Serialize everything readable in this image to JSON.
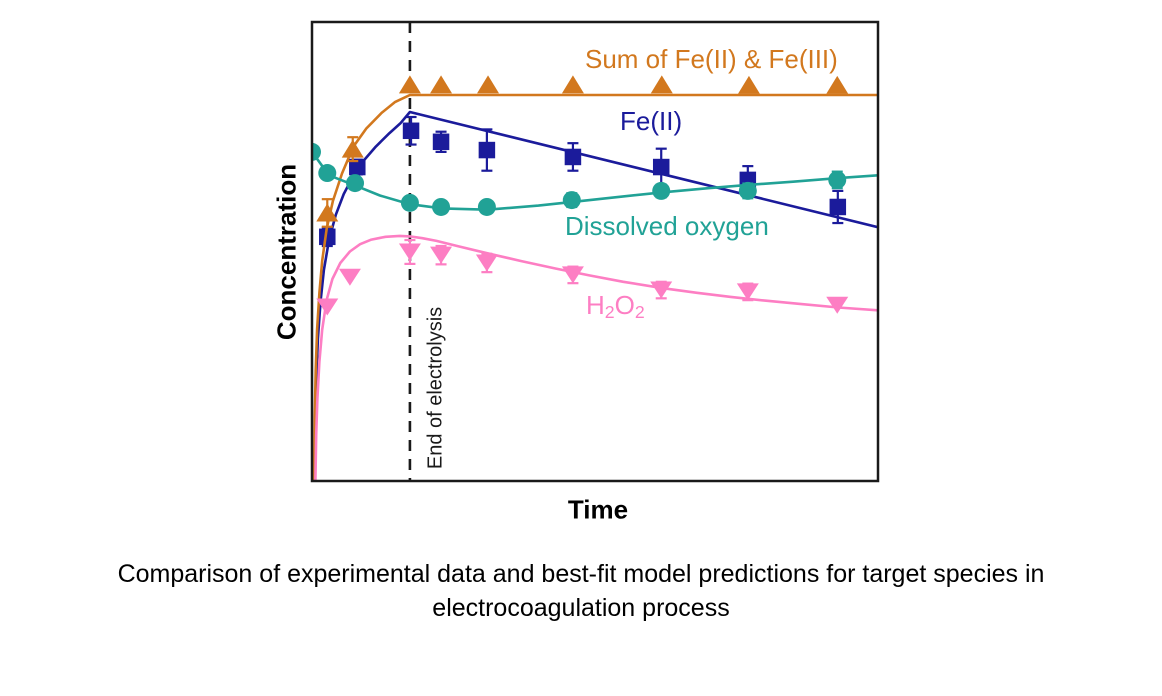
{
  "page": {
    "caption_line1": "Comparison of experimental data and best-fit model predictions for target species in",
    "caption_line2": "electrocoagulation process"
  },
  "chart_data": {
    "type": "line",
    "title": "",
    "xlabel": "Time",
    "ylabel": "Concentration",
    "x_axis": {
      "range": [
        0,
        100
      ],
      "tick_labels": "none",
      "units": "arbitrary"
    },
    "y_axis": {
      "range": [
        0,
        100
      ],
      "tick_labels": "none",
      "units": "arbitrary"
    },
    "grid": "off",
    "legend_position": "inline-labels",
    "annotations": [
      {
        "type": "vline",
        "x": 17.3,
        "line_style": "dashed",
        "color": "#1a1a1a",
        "label": "End of electrolysis"
      }
    ],
    "series": [
      {
        "name": "sum-fe",
        "label": "Sum of Fe(II) & Fe(III)",
        "color": "#D2781E",
        "marker": "triangle-up",
        "z": 2,
        "points": [
          [
            2.7,
            58.4,
            3.0
          ],
          [
            7.2,
            72.3,
            2.6
          ],
          [
            17.3,
            86.3,
            0
          ],
          [
            22.8,
            86.3,
            0
          ],
          [
            31.1,
            86.3,
            0
          ],
          [
            46.1,
            86.3,
            0
          ],
          [
            61.8,
            86.3,
            0
          ],
          [
            77.2,
            86.2,
            0
          ],
          [
            92.8,
            86.2,
            0
          ]
        ],
        "model_line": [
          [
            0.35,
            0
          ],
          [
            0.5,
            14
          ],
          [
            0.65,
            24
          ],
          [
            0.9,
            33
          ],
          [
            1.3,
            41
          ],
          [
            1.8,
            48
          ],
          [
            2.6,
            55
          ],
          [
            3.7,
            61
          ],
          [
            5.3,
            67
          ],
          [
            7.3,
            72.8
          ],
          [
            9.6,
            76.8
          ],
          [
            12.3,
            80.2
          ],
          [
            14.7,
            82.6
          ],
          [
            17.3,
            84.1
          ],
          [
            100,
            84.1
          ]
        ]
      },
      {
        "name": "fe2",
        "label": "Fe(II)",
        "color": "#1B1B9B",
        "marker": "square",
        "z": 1,
        "points": [
          [
            2.7,
            53.2,
            2.0
          ],
          [
            8.0,
            68.4,
            1.6
          ],
          [
            17.5,
            76.3,
            3.0
          ],
          [
            22.8,
            73.9,
            2.2
          ],
          [
            30.9,
            72.1,
            4.5
          ],
          [
            46.1,
            70.6,
            3.0
          ],
          [
            61.7,
            68.4,
            4.0
          ],
          [
            77.0,
            65.6,
            3.0
          ],
          [
            92.9,
            59.7,
            3.5
          ]
        ],
        "model_line": [
          [
            0.4,
            0
          ],
          [
            0.55,
            12
          ],
          [
            0.75,
            22
          ],
          [
            1.05,
            31
          ],
          [
            1.5,
            39
          ],
          [
            2.1,
            46
          ],
          [
            3,
            52.5
          ],
          [
            4.2,
            58
          ],
          [
            5.6,
            62.5
          ],
          [
            7.2,
            66.3
          ],
          [
            9,
            69.6
          ],
          [
            11.3,
            72.9
          ],
          [
            13.7,
            75.8
          ],
          [
            15.6,
            77.9
          ],
          [
            17.3,
            80.4
          ],
          [
            100,
            55.3
          ]
        ]
      },
      {
        "name": "dissolved-oxygen",
        "label": "Dissolved oxygen",
        "color": "#21A296",
        "marker": "circle",
        "z": 3,
        "points": [
          [
            0,
            71.7,
            0
          ],
          [
            2.7,
            67.1,
            0
          ],
          [
            7.6,
            64.9,
            0
          ],
          [
            17.3,
            60.6,
            1.2
          ],
          [
            22.8,
            59.7,
            0
          ],
          [
            30.9,
            59.7,
            0
          ],
          [
            45.9,
            61.2,
            1.5
          ],
          [
            61.7,
            63.2,
            1.4
          ],
          [
            77.0,
            63.2,
            1.6
          ],
          [
            92.8,
            65.6,
            1.8
          ]
        ],
        "model_line": [
          [
            0,
            71.7
          ],
          [
            3,
            66.6
          ],
          [
            7.6,
            64.4
          ],
          [
            12,
            62.2
          ],
          [
            17.3,
            60.3
          ],
          [
            23,
            59.4
          ],
          [
            31,
            59.1
          ],
          [
            40,
            60.0
          ],
          [
            46,
            60.8
          ],
          [
            55,
            62.0
          ],
          [
            62,
            62.9
          ],
          [
            70,
            63.8
          ],
          [
            77,
            64.5
          ],
          [
            85,
            65.2
          ],
          [
            93,
            66.0
          ],
          [
            100,
            66.6
          ]
        ]
      },
      {
        "name": "h2o2",
        "label": "H2O2",
        "label_parts": [
          "H",
          "2",
          "O",
          "2"
        ],
        "color": "#FD7EC3",
        "marker": "triangle-down",
        "z": 4,
        "points": [
          [
            2.7,
            37.9,
            0
          ],
          [
            6.7,
            44.4,
            0
          ],
          [
            17.3,
            49.9,
            2.6
          ],
          [
            22.8,
            49.2,
            2.0
          ],
          [
            30.9,
            47.5,
            2.0
          ],
          [
            46.1,
            44.9,
            1.8
          ],
          [
            61.7,
            41.6,
            1.8
          ],
          [
            77.0,
            41.2,
            1.8
          ],
          [
            92.8,
            38.3,
            0
          ]
        ],
        "model_line": [
          [
            0.6,
            0
          ],
          [
            0.75,
            10
          ],
          [
            0.95,
            18
          ],
          [
            1.3,
            26
          ],
          [
            1.8,
            33
          ],
          [
            2.6,
            39.5
          ],
          [
            3.6,
            44
          ],
          [
            5,
            47.5
          ],
          [
            6.7,
            50
          ],
          [
            8.5,
            51.6
          ],
          [
            10.5,
            52.6
          ],
          [
            13,
            53.2
          ],
          [
            15.5,
            53.4
          ],
          [
            17.3,
            53.3
          ],
          [
            19.5,
            52.9
          ],
          [
            22,
            52.3
          ],
          [
            26,
            51.1
          ],
          [
            31,
            49.6
          ],
          [
            37,
            47.9
          ],
          [
            43,
            46.3
          ],
          [
            49,
            44.8
          ],
          [
            55,
            43.4
          ],
          [
            62,
            42.0
          ],
          [
            68,
            41.0
          ],
          [
            74,
            40.1
          ],
          [
            80,
            39.3
          ],
          [
            86,
            38.6
          ],
          [
            93,
            37.8
          ],
          [
            100,
            37.2
          ]
        ]
      }
    ]
  }
}
